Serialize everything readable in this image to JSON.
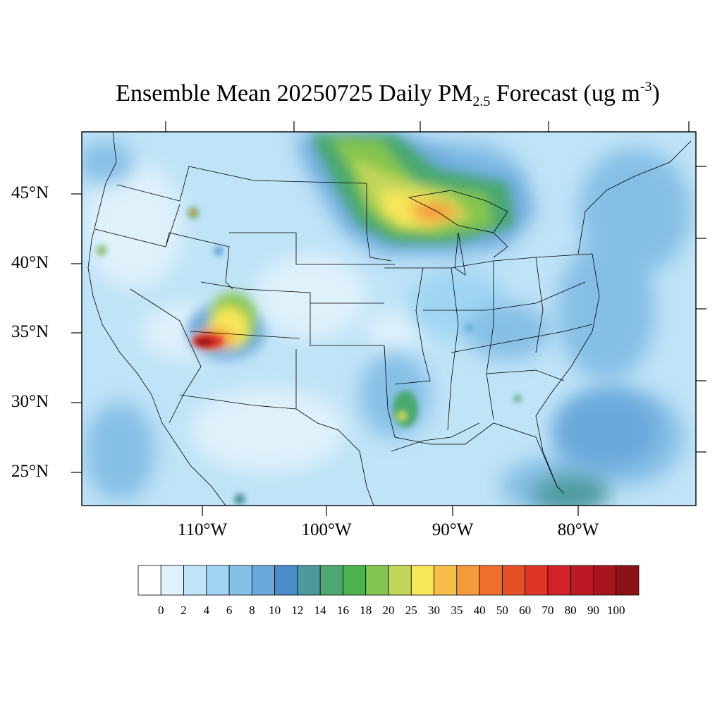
{
  "title": {
    "main": "Ensemble Mean 20250725 Daily PM",
    "subscript": "2.5",
    "after_subscript": " Forecast (ug m",
    "superscript": "-3",
    "closing": ")"
  },
  "map": {
    "lat_labels": [
      "45°N",
      "40°N",
      "35°N",
      "30°N",
      "25°N"
    ],
    "lon_labels": [
      "110°W",
      "100°W",
      "90°W",
      "80°W"
    ],
    "background_color": "#bfe3f7"
  },
  "colorbar": {
    "levels": [
      "0",
      "2",
      "4",
      "6",
      "8",
      "10",
      "12",
      "14",
      "16",
      "18",
      "20",
      "25",
      "30",
      "35",
      "40",
      "50",
      "60",
      "70",
      "80",
      "90",
      "100"
    ],
    "colors": [
      "#ffffff",
      "#dff1fb",
      "#bfe3f7",
      "#9fd5f3",
      "#86bfe6",
      "#6aa9dc",
      "#4a8bc8",
      "#4d9a9c",
      "#4aa870",
      "#4bb24e",
      "#84c54f",
      "#c2d65a",
      "#f6e75a",
      "#f7bf4a",
      "#f49a3c",
      "#ef6f2f",
      "#e65027",
      "#dd3626",
      "#d1222a",
      "#bb1a25",
      "#a7161f",
      "#8c1219"
    ]
  }
}
